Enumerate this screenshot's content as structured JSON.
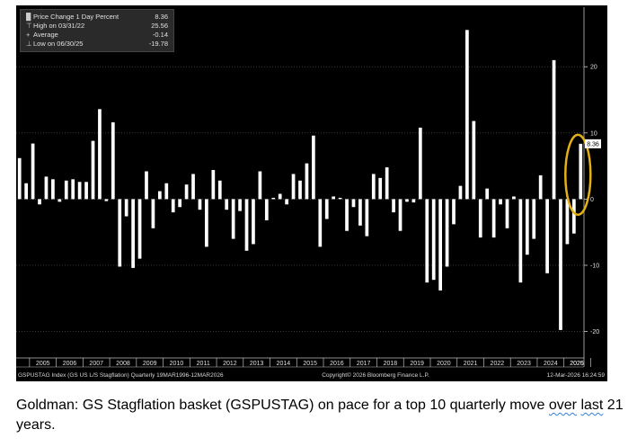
{
  "chart_data": {
    "type": "bar",
    "legend": {
      "placement": "top-left",
      "entries": [
        {
          "symbol": "█",
          "label": "Price Change 1 Day Percent",
          "value": "8.36"
        },
        {
          "symbol": "⊤",
          "label": "High on 03/31/22",
          "value": "25.56"
        },
        {
          "symbol": "+",
          "label": "Average",
          "value": "-0.14"
        },
        {
          "symbol": "⊥",
          "label": "Low on 06/30/25",
          "value": "-19.78"
        }
      ]
    },
    "values": [
      6.2,
      2.4,
      8.4,
      -0.8,
      3.4,
      3.0,
      -0.4,
      2.8,
      3.0,
      2.6,
      2.6,
      8.8,
      13.6,
      -0.3,
      11.6,
      -10.2,
      -2.6,
      -10.4,
      -9.0,
      4.2,
      -4.4,
      1.2,
      2.4,
      -2.0,
      -1.2,
      2.2,
      3.8,
      -1.6,
      -7.2,
      4.4,
      2.8,
      -1.6,
      -6.0,
      -1.8,
      -7.8,
      -6.8,
      4.2,
      -3.2,
      0.2,
      0.8,
      -0.8,
      3.8,
      2.8,
      5.4,
      9.6,
      -7.2,
      -3.0,
      0.4,
      0.2,
      -4.8,
      -1.2,
      -4.0,
      -5.6,
      3.8,
      3.2,
      4.8,
      -2.0,
      -4.8,
      -0.4,
      -0.5,
      10.8,
      -12.6,
      -12.2,
      -13.8,
      -10.2,
      -3.8,
      2.0,
      25.56,
      11.8,
      -5.8,
      1.6,
      -5.8,
      -0.8,
      -4.4,
      0.4,
      -12.6,
      -8.4,
      -6.0,
      3.6,
      -11.2,
      21.0,
      -19.78,
      -6.8,
      -5.2,
      8.36
    ],
    "ylim": [
      -24,
      29
    ],
    "yticks": [
      20,
      10,
      0,
      -10,
      -20
    ],
    "current_value_label": "8.36",
    "xticks": [
      "2005",
      "2006",
      "2007",
      "2008",
      "2009",
      "2010",
      "2011",
      "2012",
      "2013",
      "2014",
      "2015",
      "2016",
      "2017",
      "2018",
      "2019",
      "2020",
      "2021",
      "2022",
      "2023",
      "2024",
      "2025",
      "2026"
    ],
    "footer_left": "GSPUSTAG Index (GS US L/S Stagflation) Quarterly 19MAR1996-12MAR2026",
    "footer_center": "Copyright© 2026 Bloomberg Finance L.P.",
    "footer_right": "12-Mar-2026 16:24:59",
    "grid": true,
    "bar_color": "#ffffff",
    "highlight_color": "#e3b115"
  },
  "caption": {
    "main": "Goldman: GS Stagflation basket (GSPUSTAG) on pace for a top 10 quarterly move ",
    "underlined_1": "over",
    "middle": " ",
    "underlined_2": "last",
    "end": " 21 years."
  }
}
